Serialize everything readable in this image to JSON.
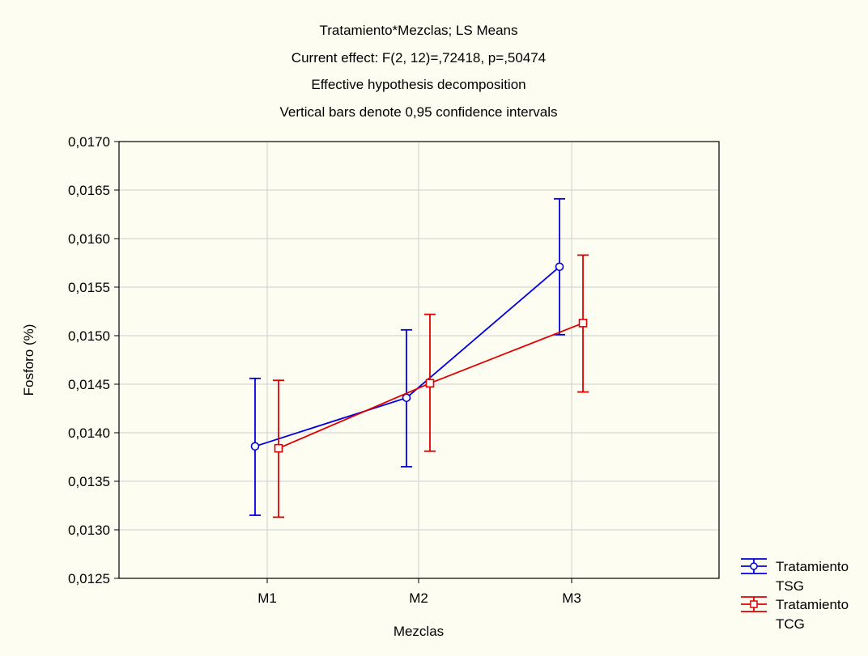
{
  "chart_data": {
    "type": "line",
    "title_lines": [
      "Tratamiento*Mezclas; LS Means",
      "Current effect: F(2, 12)=,72418, p=,50474",
      "Effective hypothesis decomposition",
      "Vertical bars denote 0,95 confidence intervals"
    ],
    "xlabel": "Mezclas",
    "ylabel": "Fosforo (%)",
    "categories": [
      "M1",
      "M2",
      "M3"
    ],
    "ylim": [
      0.0125,
      0.017
    ],
    "yticks": [
      0.0125,
      0.013,
      0.0135,
      0.014,
      0.0145,
      0.015,
      0.0155,
      0.016,
      0.0165,
      0.017
    ],
    "ytick_labels": [
      "0,0125",
      "0,0130",
      "0,0135",
      "0,0140",
      "0,0145",
      "0,0150",
      "0,0155",
      "0,0160",
      "0,0165",
      "0,0170"
    ],
    "grid": true,
    "error_bars": "0.95 confidence intervals",
    "legend_position": "bottom-right, outside plot",
    "series": [
      {
        "name_lines": [
          "Tratamiento",
          "TSG"
        ],
        "color": "#0000E0",
        "marker": "circle",
        "values": [
          0.01386,
          0.01436,
          0.01571
        ],
        "ci_low": [
          0.01315,
          0.01365,
          0.01501
        ],
        "ci_high": [
          0.01456,
          0.01506,
          0.01641
        ]
      },
      {
        "name_lines": [
          "Tratamiento",
          "TCG"
        ],
        "color": "#E00000",
        "marker": "square",
        "values": [
          0.01384,
          0.01451,
          0.01513
        ],
        "ci_low": [
          0.01313,
          0.01381,
          0.01442
        ],
        "ci_high": [
          0.01454,
          0.01522,
          0.01583
        ]
      }
    ]
  }
}
